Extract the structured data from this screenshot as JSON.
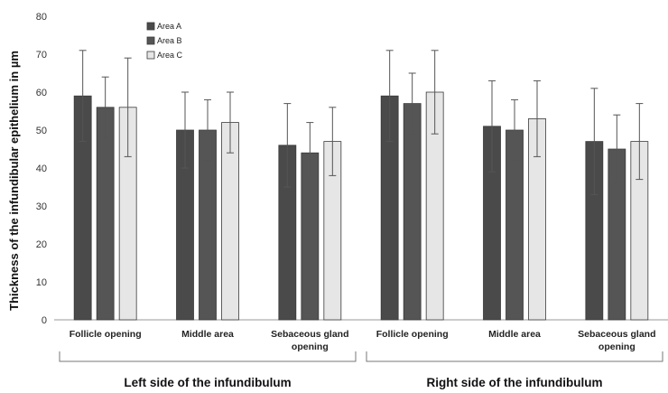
{
  "chart_data": {
    "type": "bar",
    "ylabel": "Thickness of the infundibular epithelium in µm",
    "ylim": [
      0,
      80
    ],
    "yticks": [
      0,
      10,
      20,
      30,
      40,
      50,
      60,
      70,
      80
    ],
    "grid": false,
    "legend_position": "top-left",
    "categories": [
      [
        "Follicle opening"
      ],
      [
        "Middle area"
      ],
      [
        "Sebaceous gland",
        "opening"
      ],
      [
        "Follicle opening"
      ],
      [
        "Middle area"
      ],
      [
        "Sebaceous gland",
        "opening"
      ]
    ],
    "groups": [
      {
        "label": "Left side of the infundibulum",
        "categories": [
          0,
          1,
          2
        ]
      },
      {
        "label": "Right side of the infundibulum",
        "categories": [
          3,
          4,
          5
        ]
      }
    ],
    "series": [
      {
        "name": "Area A",
        "color": "#4a4a4a",
        "values": [
          59,
          50,
          46,
          59,
          51,
          47
        ],
        "errors": [
          12,
          10,
          11,
          12,
          12,
          14
        ]
      },
      {
        "name": "Area B",
        "color": "#555555",
        "values": [
          56,
          50,
          44,
          57,
          50,
          45
        ],
        "errors": [
          8,
          8,
          8,
          8,
          8,
          9
        ]
      },
      {
        "name": "Area C",
        "color": "#e6e6e6",
        "values": [
          56,
          52,
          47,
          60,
          53,
          47
        ],
        "errors": [
          13,
          8,
          9,
          11,
          10,
          10
        ]
      }
    ]
  }
}
